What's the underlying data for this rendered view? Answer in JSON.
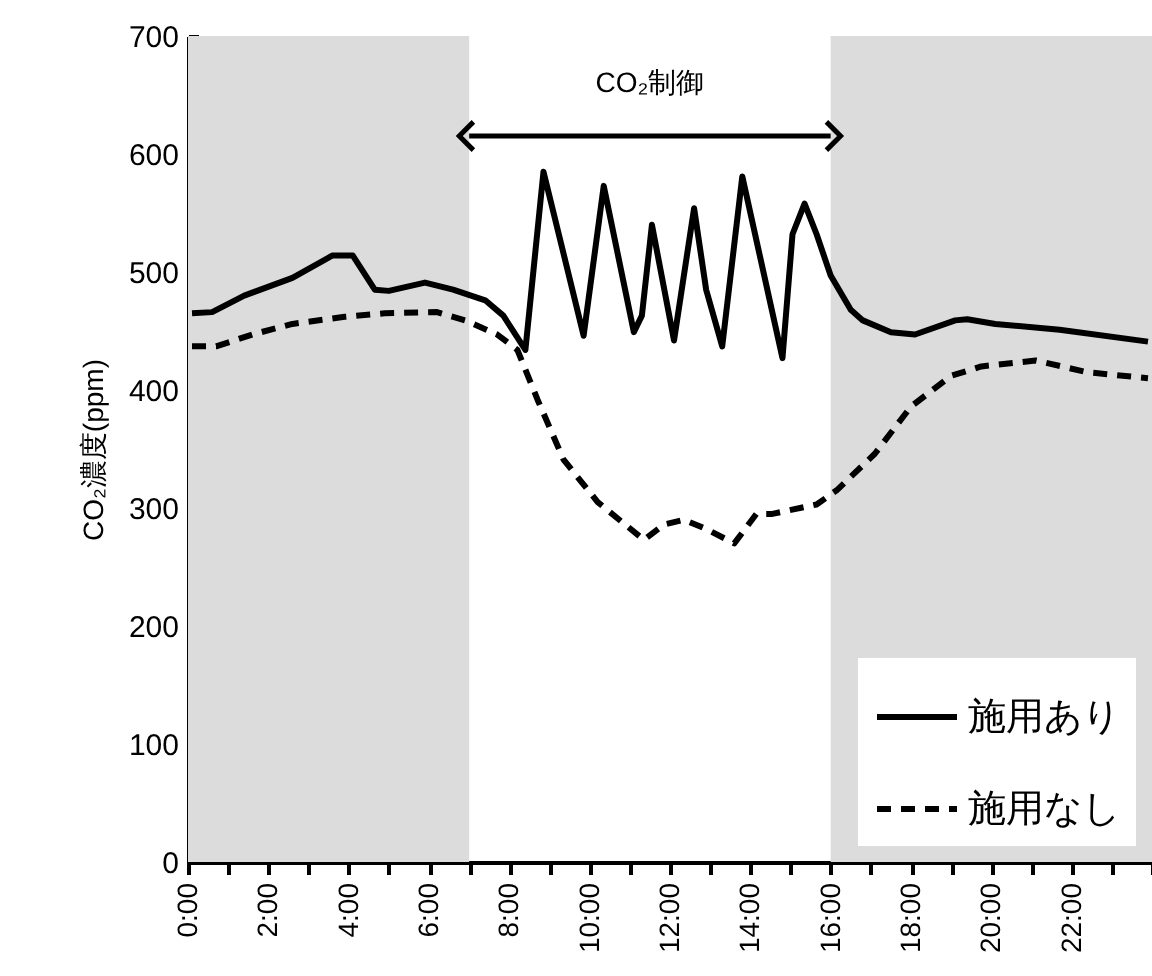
{
  "chart_data": {
    "type": "line",
    "ylabel": "CO₂濃度(ppm)",
    "xlim": [
      0,
      24
    ],
    "xticks": [
      {
        "value": 0,
        "label": "0:00"
      },
      {
        "value": 1,
        "label": null
      },
      {
        "value": 2,
        "label": "2:00"
      },
      {
        "value": 3,
        "label": null
      },
      {
        "value": 4,
        "label": "4:00"
      },
      {
        "value": 5,
        "label": null
      },
      {
        "value": 6,
        "label": "6:00"
      },
      {
        "value": 7,
        "label": null
      },
      {
        "value": 8,
        "label": "8:00"
      },
      {
        "value": 9,
        "label": null
      },
      {
        "value": 10,
        "label": "10:00"
      },
      {
        "value": 11,
        "label": null
      },
      {
        "value": 12,
        "label": "12:00"
      },
      {
        "value": 13,
        "label": null
      },
      {
        "value": 14,
        "label": "14:00"
      },
      {
        "value": 15,
        "label": null
      },
      {
        "value": 16,
        "label": "16:00"
      },
      {
        "value": 17,
        "label": null
      },
      {
        "value": 18,
        "label": "18:00"
      },
      {
        "value": 19,
        "label": null
      },
      {
        "value": 20,
        "label": "20:00"
      },
      {
        "value": 21,
        "label": null
      },
      {
        "value": 22,
        "label": "22:00"
      },
      {
        "value": 23,
        "label": null
      },
      {
        "value": 24,
        "label": null
      }
    ],
    "ylim": [
      0,
      700
    ],
    "yticks": [
      0,
      100,
      200,
      300,
      400,
      500,
      600,
      700
    ],
    "grid": false,
    "legend": "bottom right",
    "series": [
      {
        "name": "施用あり",
        "color": "#000000",
        "line_style": "solid",
        "x": [
          0.1,
          0.6,
          1.4,
          2.6,
          3.6,
          4.1,
          4.65,
          5.0,
          5.9,
          6.6,
          7.4,
          7.85,
          8.4,
          8.85,
          9.85,
          10.35,
          11.1,
          11.3,
          11.55,
          12.1,
          12.6,
          12.9,
          13.3,
          13.8,
          14.8,
          15.05,
          15.35,
          15.65,
          16.0,
          16.5,
          16.8,
          17.5,
          18.1,
          19.1,
          19.4,
          20.1,
          21.7,
          23.9
        ],
        "values": [
          465,
          466,
          480,
          495,
          514,
          514,
          485,
          484,
          491,
          485,
          476,
          463,
          434,
          585,
          446,
          573,
          449,
          463,
          540,
          442,
          554,
          485,
          437,
          581,
          427,
          532,
          558,
          532,
          497,
          468,
          459,
          449,
          447,
          459,
          460,
          456,
          451,
          441
        ]
      },
      {
        "name": "施用なし",
        "color": "#000000",
        "line_style": "dashed",
        "x": [
          0.1,
          0.7,
          1.6,
          2.6,
          3.9,
          4.9,
          6.2,
          6.9,
          7.7,
          8.2,
          8.7,
          9.35,
          10.2,
          11.35,
          11.85,
          12.35,
          12.85,
          13.6,
          14.15,
          14.55,
          15.65,
          16.15,
          17.1,
          18.0,
          19.0,
          19.75,
          21.1,
          22.4,
          23.9
        ],
        "values": [
          437,
          437,
          447,
          456,
          462,
          465,
          466,
          459,
          447,
          434,
          392,
          341,
          305,
          273,
          286,
          290,
          283,
          270,
          295,
          295,
          303,
          315,
          346,
          386,
          412,
          420,
          425,
          415,
          410
        ]
      }
    ],
    "bands": [
      {
        "axis": "x",
        "from": 0,
        "to": 7,
        "color": "#dcdcdc"
      },
      {
        "axis": "x",
        "from": 16,
        "to": 24,
        "color": "#dcdcdc"
      }
    ],
    "annotations": [
      "CO₂制御"
    ]
  }
}
